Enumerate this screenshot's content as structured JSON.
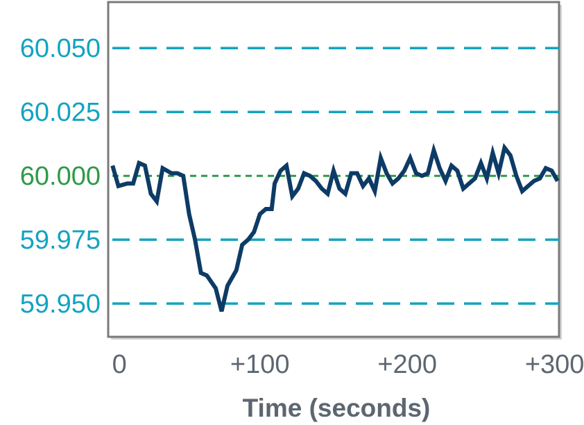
{
  "chart_data": {
    "type": "line",
    "xlabel": "Time (seconds)",
    "ylabel": "",
    "xlim": [
      -2,
      303
    ],
    "ylim": [
      59.937,
      60.068
    ],
    "x_ticks": [
      {
        "value": 0,
        "label": "0"
      },
      {
        "value": 100,
        "label": "+100"
      },
      {
        "value": 200,
        "label": "+200"
      },
      {
        "value": 300,
        "label": "+300"
      }
    ],
    "y_ticks": [
      {
        "value": 60.05,
        "label": "60.050",
        "color": "#13a3c1",
        "style": "long-dash"
      },
      {
        "value": 60.025,
        "label": "60.025",
        "color": "#13a3c1",
        "style": "long-dash"
      },
      {
        "value": 60.0,
        "label": "60.000",
        "color": "#2e9a47",
        "style": "short-dash"
      },
      {
        "value": 59.975,
        "label": "59.975",
        "color": "#13a3c1",
        "style": "long-dash"
      },
      {
        "value": 59.95,
        "label": "59.950",
        "color": "#13a3c1",
        "style": "long-dash"
      }
    ],
    "grid": true,
    "legend": "none",
    "line_color": "#0d3b66",
    "frame_color": "#7a7a7a",
    "x": [
      0,
      4,
      10,
      14,
      18,
      22,
      26,
      30,
      34,
      40,
      44,
      48,
      52,
      56,
      60,
      64,
      70,
      74,
      78,
      84,
      88,
      92,
      96,
      100,
      104,
      108,
      110,
      114,
      118,
      122,
      126,
      130,
      134,
      138,
      142,
      146,
      150,
      154,
      158,
      162,
      166,
      170,
      174,
      178,
      182,
      186,
      190,
      194,
      198,
      202,
      206,
      210,
      214,
      218,
      222,
      226,
      230,
      234,
      238,
      242,
      246,
      250,
      254,
      258,
      262,
      266,
      270,
      274,
      278,
      282,
      286,
      290,
      294,
      298,
      302
    ],
    "y": [
      60.004,
      59.996,
      59.997,
      59.997,
      60.005,
      60.004,
      59.993,
      59.99,
      60.003,
      60.001,
      60.001,
      60.0,
      59.985,
      59.975,
      59.962,
      59.961,
      59.956,
      59.947,
      59.957,
      59.963,
      59.973,
      59.975,
      59.978,
      59.985,
      59.987,
      59.987,
      59.997,
      60.002,
      60.004,
      59.992,
      59.995,
      60.001,
      60.0,
      59.998,
      59.995,
      59.993,
      60.002,
      59.995,
      59.993,
      60.001,
      60.001,
      59.996,
      59.999,
      59.994,
      60.007,
      60.001,
      59.997,
      59.999,
      60.002,
      60.007,
      60.001,
      60.0,
      60.001,
      60.01,
      60.003,
      59.998,
      60.004,
      60.002,
      59.995,
      59.997,
      59.999,
      60.005,
      59.999,
      60.009,
      60.001,
      60.011,
      60.008,
      60.0,
      59.994,
      59.996,
      59.998,
      59.999,
      60.003,
      60.002,
      59.998
    ]
  }
}
